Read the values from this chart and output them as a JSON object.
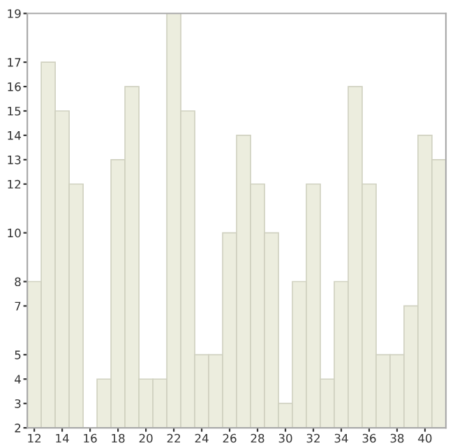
{
  "chart_data": {
    "type": "bar",
    "categories": [
      "12",
      null,
      "14",
      null,
      "16",
      null,
      "18",
      null,
      "20",
      null,
      "22",
      null,
      "24",
      null,
      "26",
      null,
      "28",
      null,
      "30",
      null,
      "32",
      null,
      "34",
      null,
      "36",
      null,
      "38",
      null,
      "40",
      null
    ],
    "values": [
      8,
      17,
      15,
      12,
      null,
      4,
      13,
      16,
      4,
      4,
      19,
      15,
      5,
      5,
      10,
      14,
      12,
      10,
      3,
      8,
      12,
      4,
      8,
      16,
      12,
      5,
      5,
      7,
      14,
      13
    ],
    "color": "#ecedde",
    "ylim": [
      2,
      19
    ],
    "yticks": [
      2,
      3,
      4,
      5,
      7,
      8,
      10,
      12,
      13,
      14,
      15,
      16,
      17,
      19
    ],
    "grid": false,
    "legend": false
  }
}
